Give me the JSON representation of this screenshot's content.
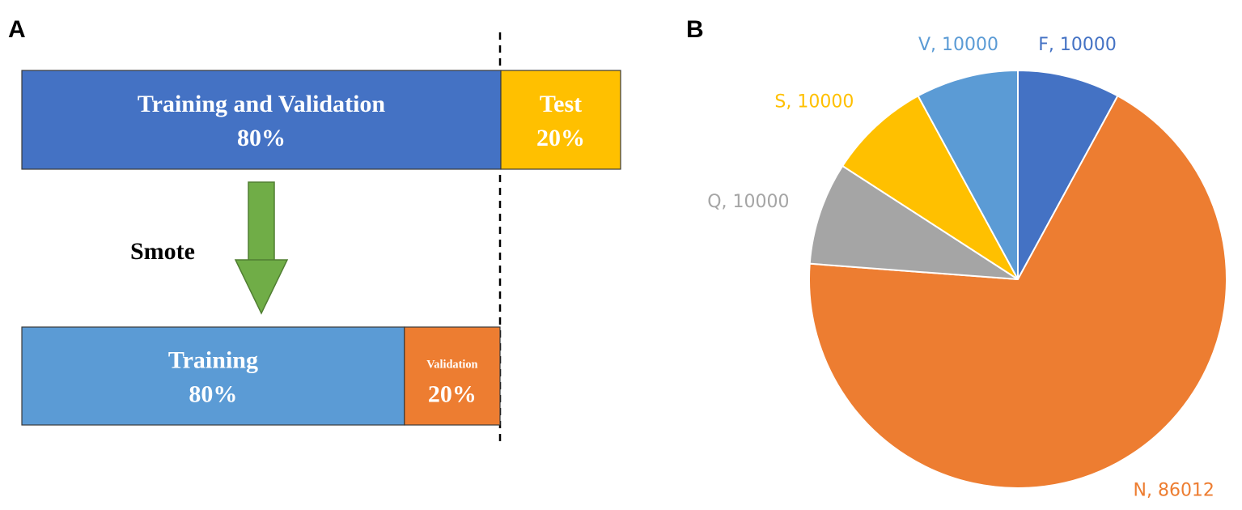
{
  "panel_a": {
    "label": "A",
    "top_bar": {
      "segments": [
        {
          "name": "Training and Validation",
          "value": 80,
          "label": "80%",
          "color": "#4472c4"
        },
        {
          "name": "Test",
          "value": 20,
          "label": "20%",
          "color": "#ffc000"
        }
      ]
    },
    "arrow_label": "Smote",
    "bottom_bar": {
      "segments": [
        {
          "name": "Training",
          "value": 80,
          "label": "80%",
          "color": "#5b9bd5"
        },
        {
          "name": "Validation",
          "value": 20,
          "label": "20%",
          "color": "#ed7d31"
        }
      ]
    }
  },
  "chart_data": {
    "type": "pie",
    "panel_label": "B",
    "values": [
      10000,
      86012,
      10000,
      10000,
      10000
    ],
    "value_labels": [
      "F, 10000",
      "N, 86012",
      "Q, 10000",
      "S, 10000",
      "V, 10000"
    ],
    "colors": [
      "#4472c4",
      "#ed7d31",
      "#a5a5a5",
      "#ffc000",
      "#5b9bd5"
    ]
  }
}
